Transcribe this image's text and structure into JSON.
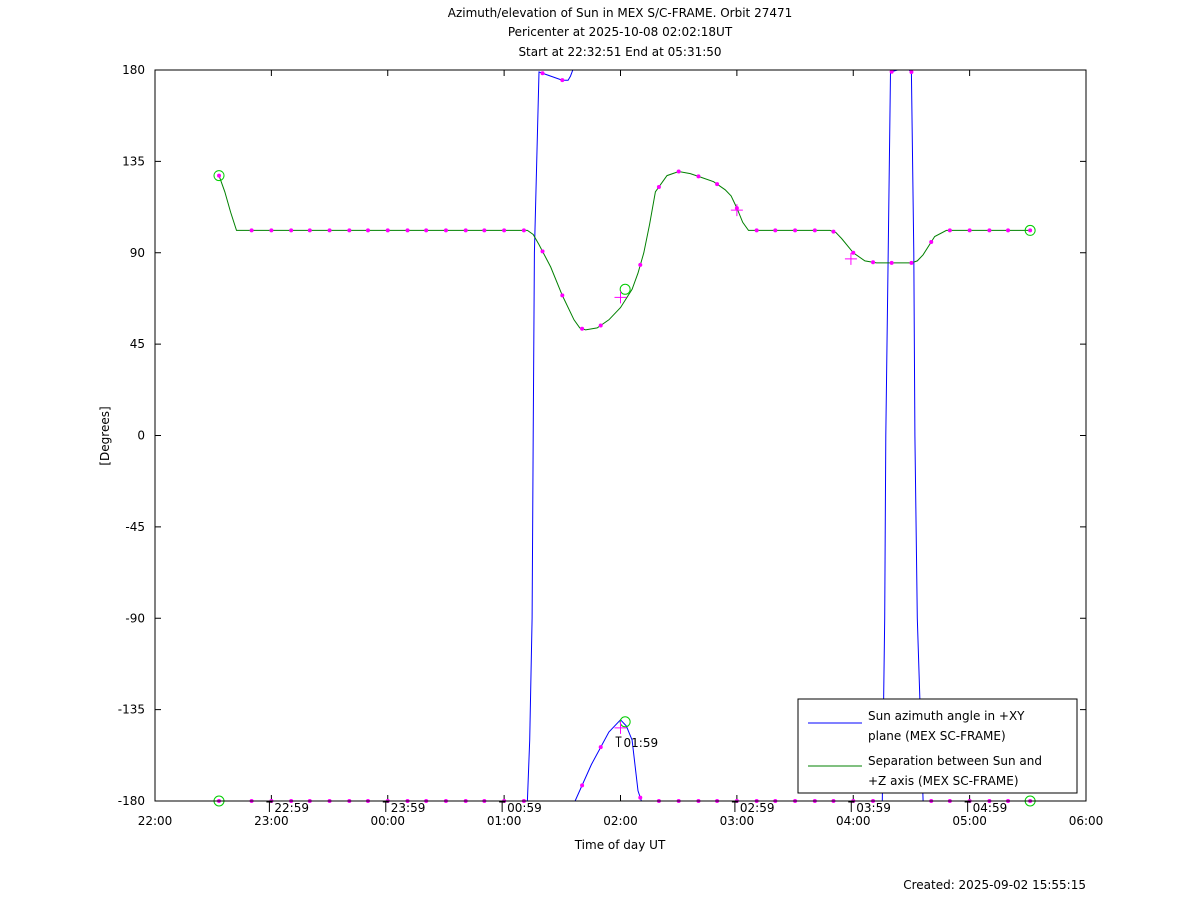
{
  "chart_data": {
    "type": "line",
    "title_lines": [
      "Azimuth/elevation of Sun in MEX S/C-FRAME.  Orbit 27471",
      "Pericenter at 2025-10-08 02:02:18UT",
      "Start at 22:32:51 End at 05:31:50"
    ],
    "xlabel": "Time of day UT",
    "ylabel": "[Degrees]",
    "xlim": [
      22.0,
      30.0
    ],
    "ylim": [
      -180,
      180
    ],
    "x_ticks": [
      {
        "v": 22,
        "label": "22:00"
      },
      {
        "v": 23,
        "label": "23:00"
      },
      {
        "v": 24,
        "label": "00:00"
      },
      {
        "v": 25,
        "label": "01:00"
      },
      {
        "v": 26,
        "label": "02:00"
      },
      {
        "v": 27,
        "label": "03:00"
      },
      {
        "v": 28,
        "label": "04:00"
      },
      {
        "v": 29,
        "label": "05:00"
      },
      {
        "v": 30,
        "label": "06:00"
      }
    ],
    "y_ticks": [
      {
        "v": 180,
        "label": "180"
      },
      {
        "v": 135,
        "label": "135"
      },
      {
        "v": 90,
        "label": "90"
      },
      {
        "v": 45,
        "label": "45"
      },
      {
        "v": 0,
        "label": "0"
      },
      {
        "v": -45,
        "label": "-45"
      },
      {
        "v": -90,
        "label": "-90"
      },
      {
        "v": -135,
        "label": "-135"
      },
      {
        "v": -180,
        "label": "-180"
      }
    ],
    "hour_marks": [
      {
        "x": 22.983,
        "label": "22:59"
      },
      {
        "x": 23.983,
        "label": "23:59"
      },
      {
        "x": 24.983,
        "label": "00:59"
      },
      {
        "x": 25.983,
        "label": "01:59"
      },
      {
        "x": 26.983,
        "label": "02:59"
      },
      {
        "x": 27.983,
        "label": "03:59"
      },
      {
        "x": 28.983,
        "label": "04:59"
      }
    ],
    "hour_mark_y": [
      -180,
      -180,
      -180,
      -148,
      -180,
      -180,
      -180
    ],
    "series": [
      {
        "name": "Sun azimuth angle in +XY plane (MEX SC-FRAME)",
        "color": "#0000ff",
        "x": [
          22.55,
          25.2,
          25.22,
          25.24,
          25.25,
          25.26,
          25.3,
          25.4,
          25.5,
          25.55,
          25.57,
          25.59,
          25.6,
          25.61,
          25.75,
          25.9,
          26.0,
          26.05,
          26.1,
          26.15,
          26.18,
          26.25,
          28.25,
          28.27,
          28.28,
          28.3,
          28.32,
          28.38,
          28.48,
          28.5,
          28.52,
          28.53,
          28.55,
          28.6,
          29.52
        ],
        "y": [
          -180,
          -180,
          -150,
          -90,
          0,
          90,
          179,
          177,
          175,
          175,
          177,
          180,
          null,
          -180,
          -162,
          -146,
          -140,
          -143,
          -150,
          -175,
          -180,
          -180,
          -180,
          -90,
          0,
          90,
          179,
          180,
          180,
          179,
          90,
          0,
          -90,
          -180,
          -180
        ]
      },
      {
        "name": "Separation between Sun and +Z axis (MEX SC-FRAME)",
        "color": "#008000",
        "x": [
          22.55,
          22.6,
          22.65,
          22.7,
          23.5,
          24.0,
          24.5,
          25.0,
          25.2,
          25.25,
          25.3,
          25.4,
          25.5,
          25.6,
          25.65,
          25.7,
          25.8,
          25.9,
          26.0,
          26.1,
          26.15,
          26.2,
          26.25,
          26.3,
          26.4,
          26.5,
          26.6,
          26.7,
          26.8,
          26.9,
          26.95,
          27.0,
          27.05,
          27.1,
          27.2,
          27.5,
          27.8,
          27.85,
          27.9,
          28.0,
          28.1,
          28.2,
          28.3,
          28.4,
          28.5,
          28.55,
          28.6,
          28.7,
          28.8,
          29.0,
          29.2,
          29.52
        ],
        "y": [
          128,
          120,
          110,
          101,
          101,
          101,
          101,
          101,
          101,
          99,
          94,
          83,
          69,
          57,
          53,
          52,
          53,
          57,
          63,
          72,
          80,
          90,
          104,
          120,
          128,
          130,
          129,
          127,
          125,
          121,
          118,
          112,
          105,
          101,
          101,
          101,
          101,
          100,
          97,
          90,
          86,
          85,
          85,
          85,
          85,
          86,
          89,
          98,
          101,
          101,
          101,
          101
        ]
      }
    ],
    "markers": {
      "color": "#ff00ff",
      "dots_x": [
        22.55,
        22.83,
        23.0,
        23.17,
        23.33,
        23.5,
        23.67,
        23.83,
        24.0,
        24.17,
        24.33,
        24.5,
        24.67,
        24.83,
        25.0,
        25.17,
        25.33,
        25.5,
        25.67,
        25.83,
        26.17,
        26.33,
        26.5,
        26.67,
        26.83,
        27.0,
        27.17,
        27.33,
        27.5,
        27.67,
        27.83,
        28.0,
        28.17,
        28.33,
        28.5,
        28.67,
        28.83,
        29.0,
        29.17,
        29.33,
        29.52
      ],
      "circles": [
        {
          "x": 22.55,
          "y": 128
        },
        {
          "x": 29.52,
          "y": 101
        },
        {
          "x": 26.04,
          "y": 72
        },
        {
          "x": 22.55,
          "y": -180
        },
        {
          "x": 29.52,
          "y": -180
        },
        {
          "x": 26.04,
          "y": -141
        }
      ],
      "plus": [
        {
          "x": 26.0,
          "y": 68
        },
        {
          "x": 27.0,
          "y": 111
        },
        {
          "x": 27.98,
          "y": 87
        },
        {
          "x": 26.0,
          "y": -144
        }
      ]
    },
    "legend": {
      "position": "bottom-right",
      "entries": [
        {
          "lines": [
            "Sun azimuth angle in +XY",
            "plane (MEX SC-FRAME)"
          ],
          "color": "#0000ff"
        },
        {
          "lines": [
            "Separation between Sun and",
            "+Z axis (MEX SC-FRAME)"
          ],
          "color": "#008000"
        }
      ]
    },
    "grid": false
  },
  "footer": {
    "created": "Created: 2025-09-02 15:55:15"
  }
}
